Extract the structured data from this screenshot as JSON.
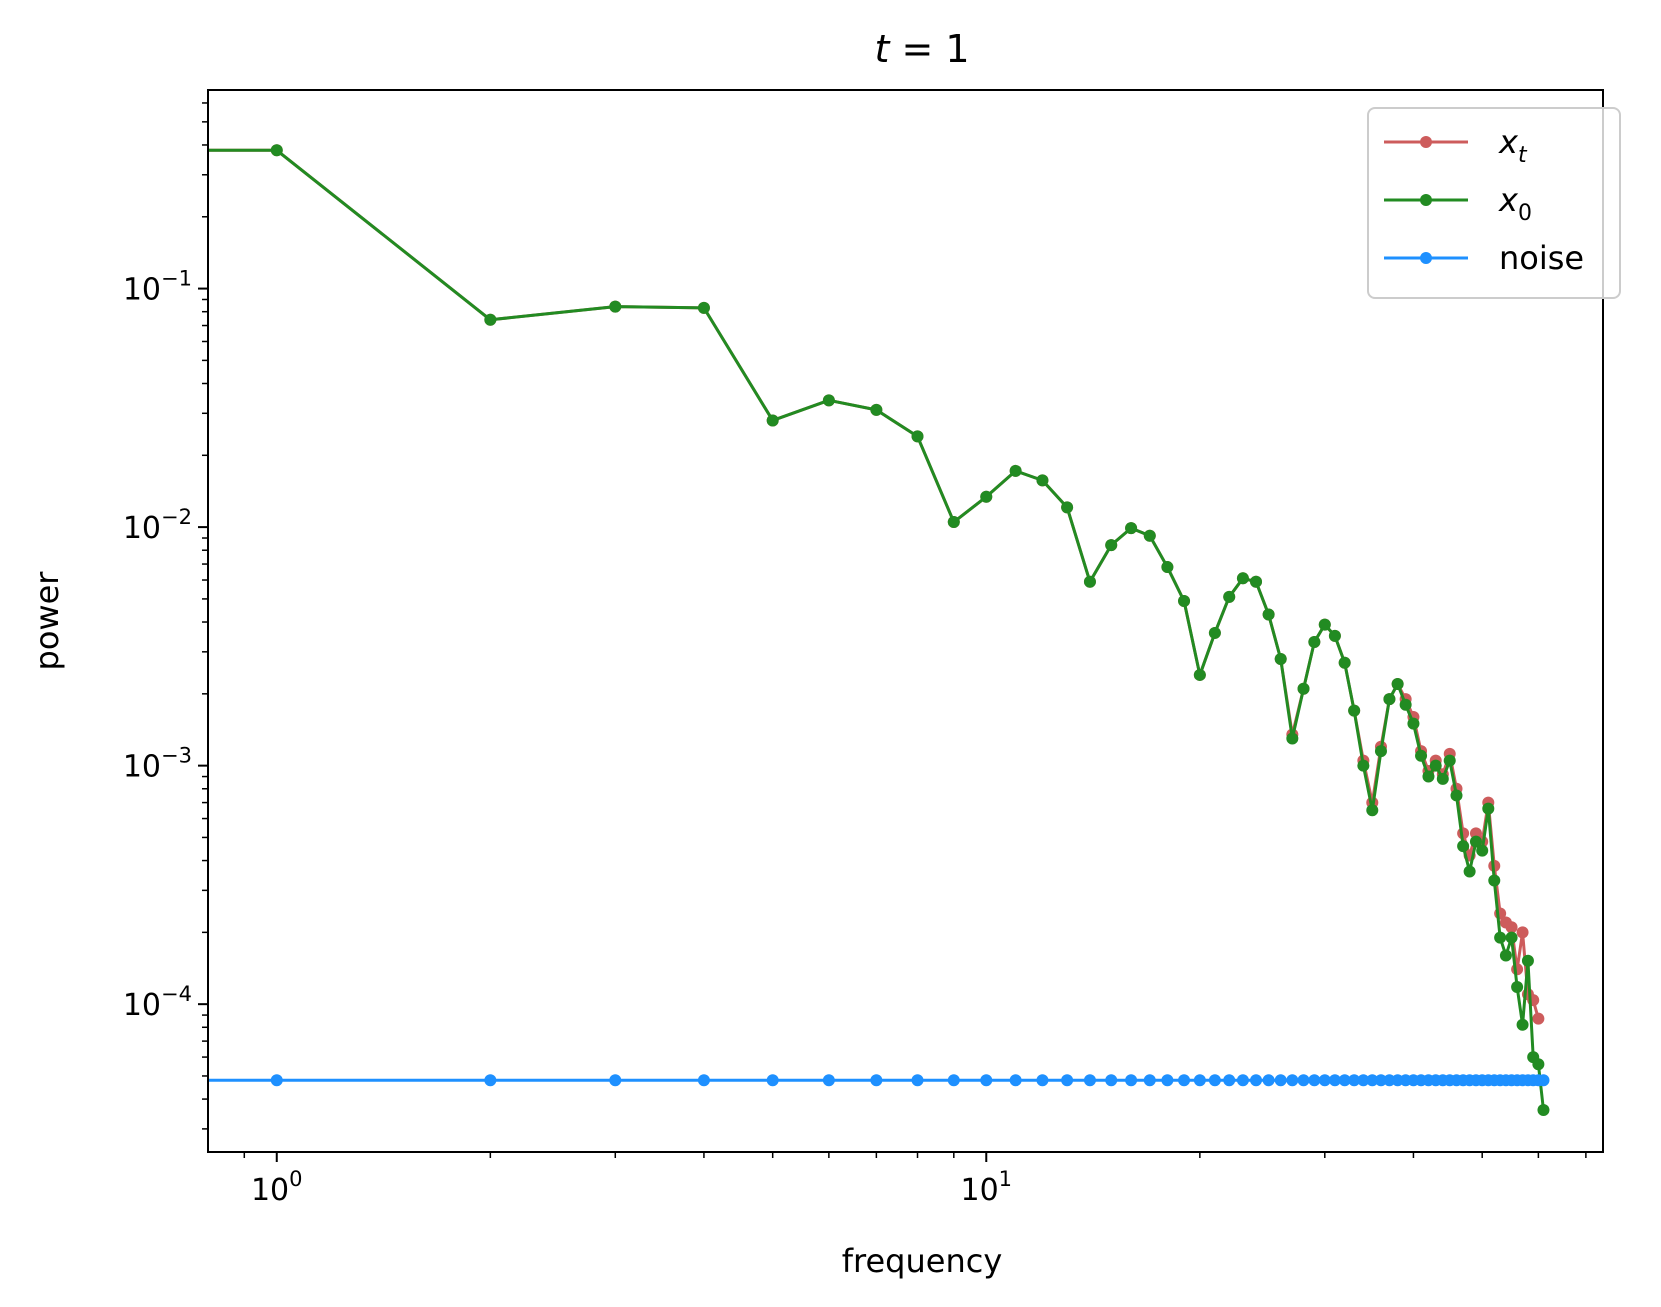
{
  "chart_data": {
    "type": "line",
    "title": {
      "var": "t",
      "op": " = ",
      "val": "1"
    },
    "xlabel": "frequency",
    "ylabel": "power",
    "xscale": "log",
    "yscale": "log",
    "xlim": [
      0.8,
      74
    ],
    "ylim": [
      2.4e-05,
      0.68
    ],
    "xticks": [
      {
        "value": 1,
        "base": "10",
        "exp": "0"
      },
      {
        "value": 10,
        "base": "10",
        "exp": "1"
      }
    ],
    "yticks": [
      {
        "value": 0.1,
        "base": "10",
        "exp": "−1"
      },
      {
        "value": 0.01,
        "base": "10",
        "exp": "−2"
      },
      {
        "value": 0.001,
        "base": "10",
        "exp": "−3"
      },
      {
        "value": 0.0001,
        "base": "10",
        "exp": "−4"
      }
    ],
    "grid": false,
    "legend": {
      "placement": "top-right"
    },
    "series": [
      {
        "key": "xt",
        "name": {
          "main": "x",
          "sub": "t"
        },
        "color": "#cd5c5c",
        "points": [
          [
            0,
            0.38
          ],
          [
            1,
            0.38
          ],
          [
            2,
            0.074
          ],
          [
            3,
            0.084
          ],
          [
            4,
            0.083
          ],
          [
            5,
            0.028
          ],
          [
            6,
            0.034
          ],
          [
            7,
            0.031
          ],
          [
            8,
            0.024
          ],
          [
            9,
            0.0105
          ],
          [
            10,
            0.0134
          ],
          [
            11,
            0.0172
          ],
          [
            12,
            0.0157
          ],
          [
            13,
            0.0121
          ],
          [
            14,
            0.0059
          ],
          [
            15,
            0.0084
          ],
          [
            16,
            0.0099
          ],
          [
            17,
            0.0092
          ],
          [
            18,
            0.0068
          ],
          [
            19,
            0.0049
          ],
          [
            20,
            0.0024
          ],
          [
            21,
            0.0036
          ],
          [
            22,
            0.0051
          ],
          [
            23,
            0.0061
          ],
          [
            24,
            0.0059
          ],
          [
            25,
            0.0043
          ],
          [
            26,
            0.0028
          ],
          [
            27,
            0.00135
          ],
          [
            28,
            0.0021
          ],
          [
            29,
            0.0033
          ],
          [
            30,
            0.0039
          ],
          [
            31,
            0.0035
          ],
          [
            32,
            0.0027
          ],
          [
            33,
            0.0017
          ],
          [
            34,
            0.00105
          ],
          [
            35,
            0.0007
          ],
          [
            36,
            0.0012
          ],
          [
            37,
            0.0019
          ],
          [
            38,
            0.0022
          ],
          [
            39,
            0.0019
          ],
          [
            40,
            0.0016
          ],
          [
            41,
            0.00115
          ],
          [
            42,
            0.00095
          ],
          [
            43,
            0.00105
          ],
          [
            44,
            0.00092
          ],
          [
            45,
            0.00112
          ],
          [
            46,
            0.0008
          ],
          [
            47,
            0.00052
          ],
          [
            48,
            0.00042
          ],
          [
            49,
            0.00052
          ],
          [
            50,
            0.00048
          ],
          [
            51,
            0.0007
          ],
          [
            52,
            0.00038
          ],
          [
            53,
            0.00024
          ],
          [
            54,
            0.00022
          ],
          [
            55,
            0.00021
          ],
          [
            56,
            0.00014
          ],
          [
            57,
            0.0002
          ],
          [
            58,
            0.00011
          ],
          [
            59,
            0.000104
          ],
          [
            60,
            8.7e-05
          ]
        ]
      },
      {
        "key": "x0",
        "name": {
          "main": "x",
          "sub": "0"
        },
        "color": "#228b22",
        "points": [
          [
            0,
            0.38
          ],
          [
            1,
            0.38
          ],
          [
            2,
            0.074
          ],
          [
            3,
            0.084
          ],
          [
            4,
            0.083
          ],
          [
            5,
            0.028
          ],
          [
            6,
            0.034
          ],
          [
            7,
            0.031
          ],
          [
            8,
            0.024
          ],
          [
            9,
            0.0105
          ],
          [
            10,
            0.0134
          ],
          [
            11,
            0.0172
          ],
          [
            12,
            0.0157
          ],
          [
            13,
            0.0121
          ],
          [
            14,
            0.0059
          ],
          [
            15,
            0.0084
          ],
          [
            16,
            0.0099
          ],
          [
            17,
            0.0092
          ],
          [
            18,
            0.0068
          ],
          [
            19,
            0.0049
          ],
          [
            20,
            0.0024
          ],
          [
            21,
            0.0036
          ],
          [
            22,
            0.0051
          ],
          [
            23,
            0.0061
          ],
          [
            24,
            0.0059
          ],
          [
            25,
            0.0043
          ],
          [
            26,
            0.0028
          ],
          [
            27,
            0.0013
          ],
          [
            28,
            0.0021
          ],
          [
            29,
            0.0033
          ],
          [
            30,
            0.0039
          ],
          [
            31,
            0.0035
          ],
          [
            32,
            0.0027
          ],
          [
            33,
            0.0017
          ],
          [
            34,
            0.001
          ],
          [
            35,
            0.00065
          ],
          [
            36,
            0.00115
          ],
          [
            37,
            0.0019
          ],
          [
            38,
            0.0022
          ],
          [
            39,
            0.0018
          ],
          [
            40,
            0.0015
          ],
          [
            41,
            0.0011
          ],
          [
            42,
            0.0009
          ],
          [
            43,
            0.001
          ],
          [
            44,
            0.00088
          ],
          [
            45,
            0.00105
          ],
          [
            46,
            0.00075
          ],
          [
            47,
            0.00046
          ],
          [
            48,
            0.00036
          ],
          [
            49,
            0.00048
          ],
          [
            50,
            0.00044
          ],
          [
            51,
            0.00066
          ],
          [
            52,
            0.00033
          ],
          [
            53,
            0.00019
          ],
          [
            54,
            0.00016
          ],
          [
            55,
            0.00019
          ],
          [
            56,
            0.000118
          ],
          [
            57,
            8.2e-05
          ],
          [
            58,
            0.000152
          ],
          [
            59,
            6e-05
          ],
          [
            60,
            5.6e-05
          ],
          [
            61,
            3.6e-05
          ]
        ]
      },
      {
        "key": "noise",
        "name": {
          "main": "noise",
          "sub": ""
        },
        "color": "#1e90ff",
        "constant": 4.8e-05,
        "x_from": 0,
        "x_to": 61
      }
    ]
  }
}
